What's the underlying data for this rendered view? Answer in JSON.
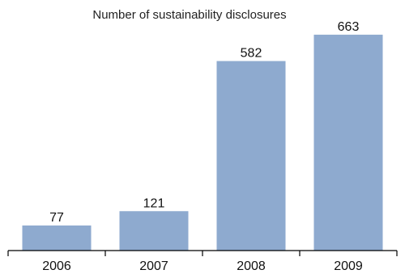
{
  "chart_data": {
    "type": "bar",
    "title": "Number of sustainability disclosures",
    "categories": [
      "2006",
      "2007",
      "2008",
      "2009"
    ],
    "values": [
      77,
      121,
      582,
      663
    ],
    "data_labels": [
      "77",
      "121",
      "582",
      "663"
    ],
    "xlabel": "",
    "ylabel": "",
    "ylim": [
      0,
      700
    ],
    "grid": false,
    "legend": "none",
    "bar_color": "#8eaacf",
    "axis_color": "#000000",
    "text_color": "#111111"
  }
}
